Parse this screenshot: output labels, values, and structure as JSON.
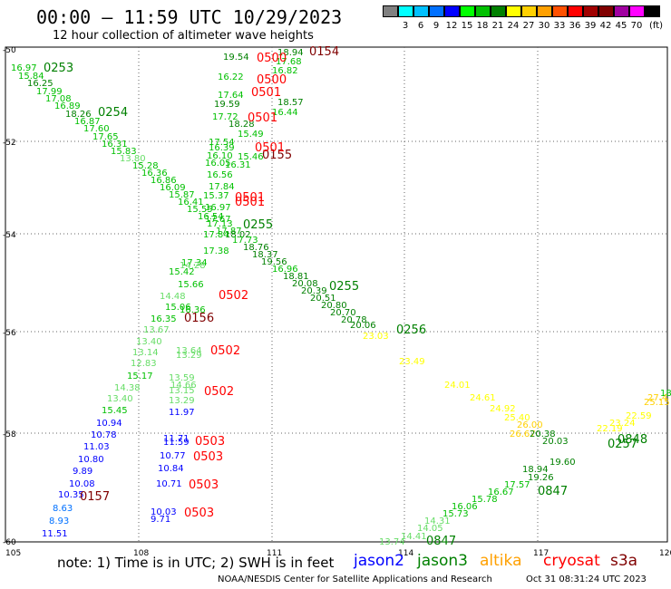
{
  "header": {
    "title": "00:00 – 11:59 UTC 10/29/2023",
    "subtitle": "12 hour collection of altimeter wave heights",
    "unit_label": "(ft)"
  },
  "legend": [
    {
      "label": "",
      "color": "#808080"
    },
    {
      "label": "3",
      "color": "#00ffff"
    },
    {
      "label": "6",
      "color": "#00c0ff"
    },
    {
      "label": "9",
      "color": "#0070ff"
    },
    {
      "label": "12",
      "color": "#0000ff"
    },
    {
      "label": "15",
      "color": "#00ff00"
    },
    {
      "label": "18",
      "color": "#00c000"
    },
    {
      "label": "21",
      "color": "#008000"
    },
    {
      "label": "24",
      "color": "#ffff00"
    },
    {
      "label": "27",
      "color": "#ffd000"
    },
    {
      "label": "30",
      "color": "#ffa000"
    },
    {
      "label": "33",
      "color": "#ff5000"
    },
    {
      "label": "36",
      "color": "#ff0000"
    },
    {
      "label": "39",
      "color": "#a00000"
    },
    {
      "label": "42",
      "color": "#800000"
    },
    {
      "label": "45",
      "color": "#a000a0"
    },
    {
      "label": "70",
      "color": "#ff00ff"
    },
    {
      "label": "",
      "color": "#000000"
    }
  ],
  "map": {
    "lon_ticks": [
      "105",
      "108",
      "111",
      "114",
      "117",
      "120"
    ],
    "lat_ticks": [
      "-50",
      "-52",
      "-54",
      "-56",
      "-58",
      "-60"
    ]
  },
  "track_labels": [
    {
      "text": "0253",
      "color": "#008000"
    },
    {
      "text": "0254",
      "color": "#008000"
    },
    {
      "text": "0255",
      "color": "#008000"
    },
    {
      "text": "0255",
      "color": "#008000"
    },
    {
      "text": "0256",
      "color": "#008000"
    },
    {
      "text": "0257",
      "color": "#008000"
    },
    {
      "text": "0848",
      "color": "#008000"
    },
    {
      "text": "0847",
      "color": "#008000"
    },
    {
      "text": "0847",
      "color": "#008000"
    },
    {
      "text": "0154",
      "color": "#800000"
    },
    {
      "text": "0155",
      "color": "#800000"
    },
    {
      "text": "0156",
      "color": "#800000"
    },
    {
      "text": "0157",
      "color": "#800000"
    },
    {
      "text": "0500",
      "color": "#ff0000"
    },
    {
      "text": "0500",
      "color": "#ff0000"
    },
    {
      "text": "0501",
      "color": "#ff0000"
    },
    {
      "text": "0501",
      "color": "#ff0000"
    },
    {
      "text": "0501",
      "color": "#ff0000"
    },
    {
      "text": "0501",
      "color": "#ff0000"
    },
    {
      "text": "0501",
      "color": "#ff0000"
    },
    {
      "text": "0502",
      "color": "#ff0000"
    },
    {
      "text": "0502",
      "color": "#ff0000"
    },
    {
      "text": "0502",
      "color": "#ff0000"
    },
    {
      "text": "0503",
      "color": "#ff0000"
    },
    {
      "text": "0503",
      "color": "#ff0000"
    },
    {
      "text": "0503",
      "color": "#ff0000"
    },
    {
      "text": "0503",
      "color": "#ff0000"
    }
  ],
  "value_labels": [
    {
      "text": "16.97",
      "color": "#00c000"
    },
    {
      "text": "15.84",
      "color": "#00c000"
    },
    {
      "text": "16.25",
      "color": "#008000"
    },
    {
      "text": "17.99",
      "color": "#00c000"
    },
    {
      "text": "17.08",
      "color": "#00c000"
    },
    {
      "text": "16.89",
      "color": "#00c000"
    },
    {
      "text": "18.26",
      "color": "#008000"
    },
    {
      "text": "16.87",
      "color": "#00c000"
    },
    {
      "text": "17.60",
      "color": "#00c000"
    },
    {
      "text": "17.65",
      "color": "#00c000"
    },
    {
      "text": "16.31",
      "color": "#00c000"
    },
    {
      "text": "15.83",
      "color": "#00c000"
    },
    {
      "text": "13.80",
      "color": "#66dd66"
    },
    {
      "text": "15.28",
      "color": "#00c000"
    },
    {
      "text": "16.36",
      "color": "#00c000"
    },
    {
      "text": "16.86",
      "color": "#00c000"
    },
    {
      "text": "16.09",
      "color": "#00c000"
    },
    {
      "text": "15.87",
      "color": "#00c000"
    },
    {
      "text": "16.41",
      "color": "#00c000"
    },
    {
      "text": "15.55",
      "color": "#00c000"
    },
    {
      "text": "16.54",
      "color": "#00c000"
    },
    {
      "text": "17.13",
      "color": "#00c000"
    },
    {
      "text": "17.87",
      "color": "#00c000"
    },
    {
      "text": "18.02",
      "color": "#008000"
    },
    {
      "text": "17.73",
      "color": "#00c000"
    },
    {
      "text": "18.76",
      "color": "#008000"
    },
    {
      "text": "18.37",
      "color": "#008000"
    },
    {
      "text": "19.56",
      "color": "#008000"
    },
    {
      "text": "16.96",
      "color": "#00c000"
    },
    {
      "text": "18.81",
      "color": "#008000"
    },
    {
      "text": "20.08",
      "color": "#008000"
    },
    {
      "text": "20.39",
      "color": "#008000"
    },
    {
      "text": "20.51",
      "color": "#008000"
    },
    {
      "text": "20.80",
      "color": "#008000"
    },
    {
      "text": "20.70",
      "color": "#008000"
    },
    {
      "text": "20.78",
      "color": "#008000"
    },
    {
      "text": "20.06",
      "color": "#008000"
    },
    {
      "text": "23.03",
      "color": "#ffff00"
    },
    {
      "text": "23.49",
      "color": "#ffff00"
    },
    {
      "text": "24.01",
      "color": "#ffff00"
    },
    {
      "text": "24.61",
      "color": "#ffff00"
    },
    {
      "text": "24.92",
      "color": "#ffff00"
    },
    {
      "text": "25.40",
      "color": "#ffff00"
    },
    {
      "text": "26.00",
      "color": "#ffd000"
    },
    {
      "text": "26.67",
      "color": "#ffd000"
    },
    {
      "text": "20.38",
      "color": "#008000"
    },
    {
      "text": "20.03",
      "color": "#008000"
    },
    {
      "text": "19.60",
      "color": "#008000"
    },
    {
      "text": "19.26",
      "color": "#008000"
    },
    {
      "text": "18.94",
      "color": "#008000"
    },
    {
      "text": "17.57",
      "color": "#00c000"
    },
    {
      "text": "16.67",
      "color": "#00c000"
    },
    {
      "text": "15.78",
      "color": "#00c000"
    },
    {
      "text": "16.06",
      "color": "#00c000"
    },
    {
      "text": "15.73",
      "color": "#00c000"
    },
    {
      "text": "14.31",
      "color": "#66dd66"
    },
    {
      "text": "14.05",
      "color": "#66dd66"
    },
    {
      "text": "14.41",
      "color": "#66dd66"
    },
    {
      "text": "13.74",
      "color": "#66dd66"
    },
    {
      "text": "22.19",
      "color": "#ffff00"
    },
    {
      "text": "23.24",
      "color": "#ffff00"
    },
    {
      "text": "22.59",
      "color": "#ffff00"
    },
    {
      "text": "25.15",
      "color": "#ffd000"
    },
    {
      "text": "27.4",
      "color": "#ffd000"
    },
    {
      "text": "18.15",
      "color": "#00c000"
    },
    {
      "text": "19.54",
      "color": "#008000"
    },
    {
      "text": "18.94",
      "color": "#008000"
    },
    {
      "text": "17.68",
      "color": "#00c000"
    },
    {
      "text": "16.82",
      "color": "#00c000"
    },
    {
      "text": "16.22",
      "color": "#00c000"
    },
    {
      "text": "17.64",
      "color": "#00c000"
    },
    {
      "text": "19.59",
      "color": "#008000"
    },
    {
      "text": "18.57",
      "color": "#008000"
    },
    {
      "text": "16.44",
      "color": "#00c000"
    },
    {
      "text": "17.72",
      "color": "#00c000"
    },
    {
      "text": "18.28",
      "color": "#008000"
    },
    {
      "text": "15.49",
      "color": "#00c000"
    },
    {
      "text": "17.54",
      "color": "#00c000"
    },
    {
      "text": "16.39",
      "color": "#00c000"
    },
    {
      "text": "16.10",
      "color": "#00c000"
    },
    {
      "text": "15.46",
      "color": "#00c000"
    },
    {
      "text": "16.05",
      "color": "#00c000"
    },
    {
      "text": "16.31",
      "color": "#00c000"
    },
    {
      "text": "16.56",
      "color": "#00c000"
    },
    {
      "text": "17.84",
      "color": "#00c000"
    },
    {
      "text": "15.37",
      "color": "#00c000"
    },
    {
      "text": "16.97",
      "color": "#00c000"
    },
    {
      "text": "17.67",
      "color": "#00c000"
    },
    {
      "text": "17.84",
      "color": "#00c000"
    },
    {
      "text": "17.38",
      "color": "#00c000"
    },
    {
      "text": "17.34",
      "color": "#00c000"
    },
    {
      "text": "14.28",
      "color": "#66dd66"
    },
    {
      "text": "15.42",
      "color": "#00c000"
    },
    {
      "text": "15.66",
      "color": "#00c000"
    },
    {
      "text": "14.48",
      "color": "#66dd66"
    },
    {
      "text": "15.06",
      "color": "#00c000"
    },
    {
      "text": "16.36",
      "color": "#00c000"
    },
    {
      "text": "16.35",
      "color": "#00c000"
    },
    {
      "text": "13.67",
      "color": "#66dd66"
    },
    {
      "text": "13.40",
      "color": "#66dd66"
    },
    {
      "text": "13.14",
      "color": "#66dd66"
    },
    {
      "text": "12.83",
      "color": "#66dd66"
    },
    {
      "text": "15.17",
      "color": "#00c000"
    },
    {
      "text": "14.38",
      "color": "#66dd66"
    },
    {
      "text": "13.40",
      "color": "#66dd66"
    },
    {
      "text": "15.45",
      "color": "#00c000"
    },
    {
      "text": "13.64",
      "color": "#66dd66"
    },
    {
      "text": "13.29",
      "color": "#66dd66"
    },
    {
      "text": "13.59",
      "color": "#66dd66"
    },
    {
      "text": "14.66",
      "color": "#66dd66"
    },
    {
      "text": "13.15",
      "color": "#66dd66"
    },
    {
      "text": "13.29",
      "color": "#66dd66"
    },
    {
      "text": "11.97",
      "color": "#0000ff"
    },
    {
      "text": "10.94",
      "color": "#0000ff"
    },
    {
      "text": "10.78",
      "color": "#0000ff"
    },
    {
      "text": "11.03",
      "color": "#0000ff"
    },
    {
      "text": "10.80",
      "color": "#0000ff"
    },
    {
      "text": "9.89",
      "color": "#0000ff"
    },
    {
      "text": "10.08",
      "color": "#0000ff"
    },
    {
      "text": "10.35",
      "color": "#0000ff"
    },
    {
      "text": "8.63",
      "color": "#0070ff"
    },
    {
      "text": "8.93",
      "color": "#0070ff"
    },
    {
      "text": "11.51",
      "color": "#0000ff"
    },
    {
      "text": "11.71",
      "color": "#0000ff"
    },
    {
      "text": "11.59",
      "color": "#0000ff"
    },
    {
      "text": "10.77",
      "color": "#0000ff"
    },
    {
      "text": "10.84",
      "color": "#0000ff"
    },
    {
      "text": "10.71",
      "color": "#0000ff"
    },
    {
      "text": "10.03",
      "color": "#0000ff"
    },
    {
      "text": "9.71",
      "color": "#0000ff"
    }
  ],
  "footer": {
    "note": "note: 1) Time is in UTC; 2) SWH is in feet",
    "satellites": [
      {
        "name": "jason2",
        "color": "#0000ff"
      },
      {
        "name": "jason3",
        "color": "#008000"
      },
      {
        "name": "altika",
        "color": "#ffa000"
      },
      {
        "name": "cryosat",
        "color": "#ff0000"
      },
      {
        "name": "s3a",
        "color": "#800000"
      }
    ],
    "credit": "NOAA/NESDIS Center for Satellite Applications and Research",
    "timestamp": "Oct 31 08:31:24 UTC 2023"
  }
}
